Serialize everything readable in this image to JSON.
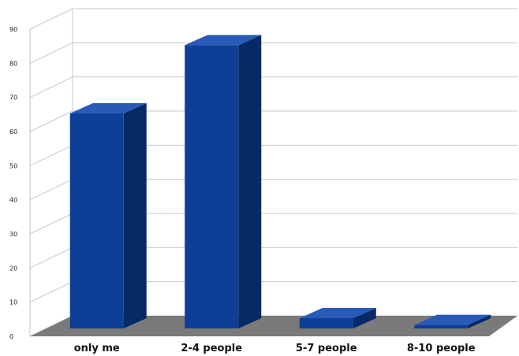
{
  "chart_data": {
    "type": "bar",
    "style": "3d",
    "categories": [
      "only me",
      "2-4 people",
      "5-7 people",
      "8-10 people"
    ],
    "values": [
      63,
      83,
      3,
      1
    ],
    "ylim": [
      0,
      90
    ],
    "yticks": [
      "0",
      "10",
      "20",
      "30",
      "40",
      "50",
      "60",
      "70",
      "80",
      "90"
    ],
    "grid": true,
    "legend": "none",
    "colors": {
      "bar_front": "#0d3f96",
      "bar_side": "#062a66",
      "bar_top": "#2a5ab8",
      "floor": "#7a7a7a",
      "grid": "#c8c8c8",
      "wall": "#ffffff"
    }
  }
}
